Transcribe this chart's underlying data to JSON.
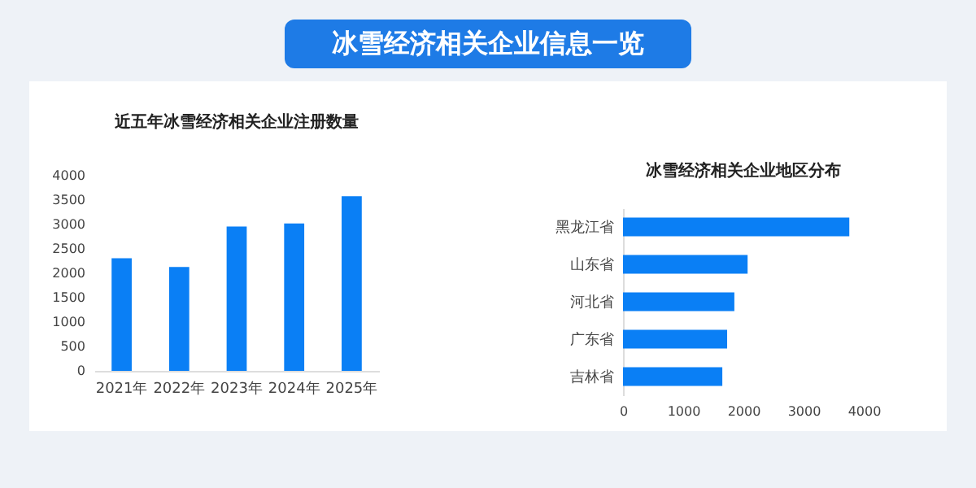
{
  "chart_data": [
    {
      "type": "other",
      "title": "冰雪经济相关企业信息一览"
    },
    {
      "type": "bar",
      "title": "近五年冰雪经济相关企业注册数量",
      "categories": [
        "2021年",
        "2022年",
        "2023年",
        "2024年",
        "2025年"
      ],
      "values": [
        2310,
        2130,
        2960,
        3020,
        3580
      ],
      "color": "#0a7ff5",
      "ylim": [
        0,
        4000
      ],
      "yticks": [
        0,
        500,
        1000,
        1500,
        2000,
        2500,
        3000,
        3500,
        4000
      ],
      "grid": false
    },
    {
      "type": "bar",
      "orientation": "horizontal",
      "title": "冰雪经济相关企业地区分布",
      "categories": [
        "黑龙江省",
        "山东省",
        "河北省",
        "广东省",
        "吉林省"
      ],
      "values": [
        3760,
        2070,
        1850,
        1730,
        1650
      ],
      "color": "#0a7ff5",
      "xlim": [
        0,
        4000
      ],
      "xticks": [
        0,
        1000,
        2000,
        3000,
        4000
      ],
      "grid": false
    }
  ]
}
